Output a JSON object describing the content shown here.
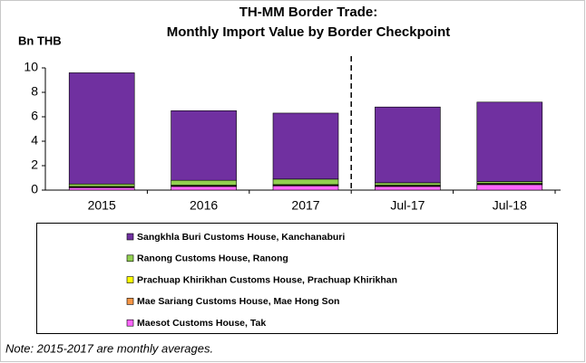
{
  "chart_data": {
    "type": "stacked_bar",
    "title": "TH-MM Border Trade:",
    "subtitle": "Monthly Import Value by Border Checkpoint",
    "ylabel": "Bn THB",
    "note": "Note: 2015-2017 are monthly averages.",
    "categories": [
      "2015",
      "2016",
      "2017",
      "Jul-17",
      "Jul-18"
    ],
    "series": [
      {
        "name": "Sangkhla Buri Customs House, Kanchanaburi",
        "color": "#7030a0",
        "values": [
          9.1,
          5.7,
          5.4,
          6.2,
          6.5
        ]
      },
      {
        "name": "Ranong Customs House, Ranong",
        "color": "#92d050",
        "values": [
          0.2,
          0.4,
          0.45,
          0.2,
          0.15
        ]
      },
      {
        "name": "Prachuap Khirikhan Customs House, Prachuap Khirikhan",
        "color": "#ffff00",
        "values": [
          0.05,
          0.05,
          0.05,
          0.05,
          0.05
        ]
      },
      {
        "name": "Mae Sariang Customs House, Mae Hong Son",
        "color": "#f79646",
        "values": [
          0.05,
          0.05,
          0.05,
          0.05,
          0.05
        ]
      },
      {
        "name": "Maesot Customs House, Tak",
        "color": "#ff66ff",
        "values": [
          0.2,
          0.3,
          0.35,
          0.3,
          0.45
        ]
      }
    ],
    "ylim": [
      0,
      10
    ],
    "yticks": [
      0,
      2,
      4,
      6,
      8,
      10
    ]
  }
}
